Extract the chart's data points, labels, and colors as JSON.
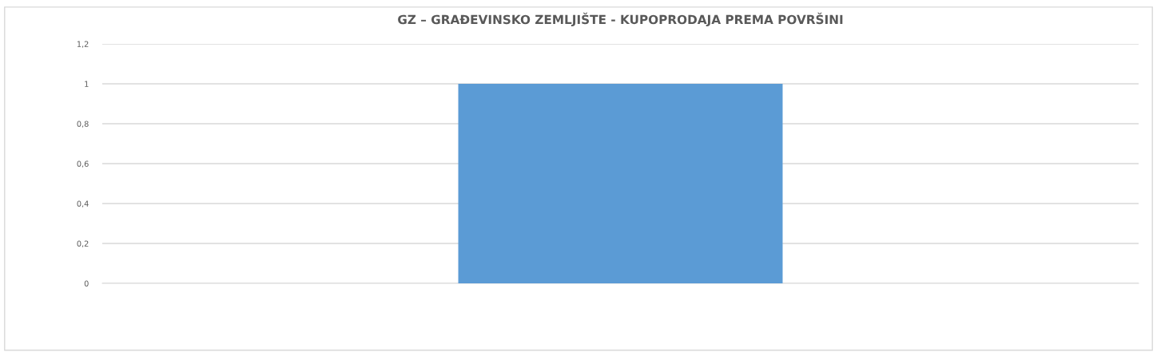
{
  "chart_data": {
    "type": "bar",
    "title": "GZ – GRAĐEVINSKO ZEMLJIŠTE - KUPOPRODAJA PREMA POVRŠINI",
    "categories": [
      null
    ],
    "values": [
      1
    ],
    "color": "#5b9bd5",
    "ylim": [
      0,
      1.2
    ],
    "yticks": [
      {
        "value": 0,
        "label": "0"
      },
      {
        "value": 0.2,
        "label": "0,2"
      },
      {
        "value": 0.4,
        "label": "0,4"
      },
      {
        "value": 0.6,
        "label": "0,6"
      },
      {
        "value": 0.8,
        "label": "0,8"
      },
      {
        "value": 1,
        "label": "1"
      },
      {
        "value": 1.2,
        "label": "1,2"
      }
    ],
    "grid": "y"
  }
}
